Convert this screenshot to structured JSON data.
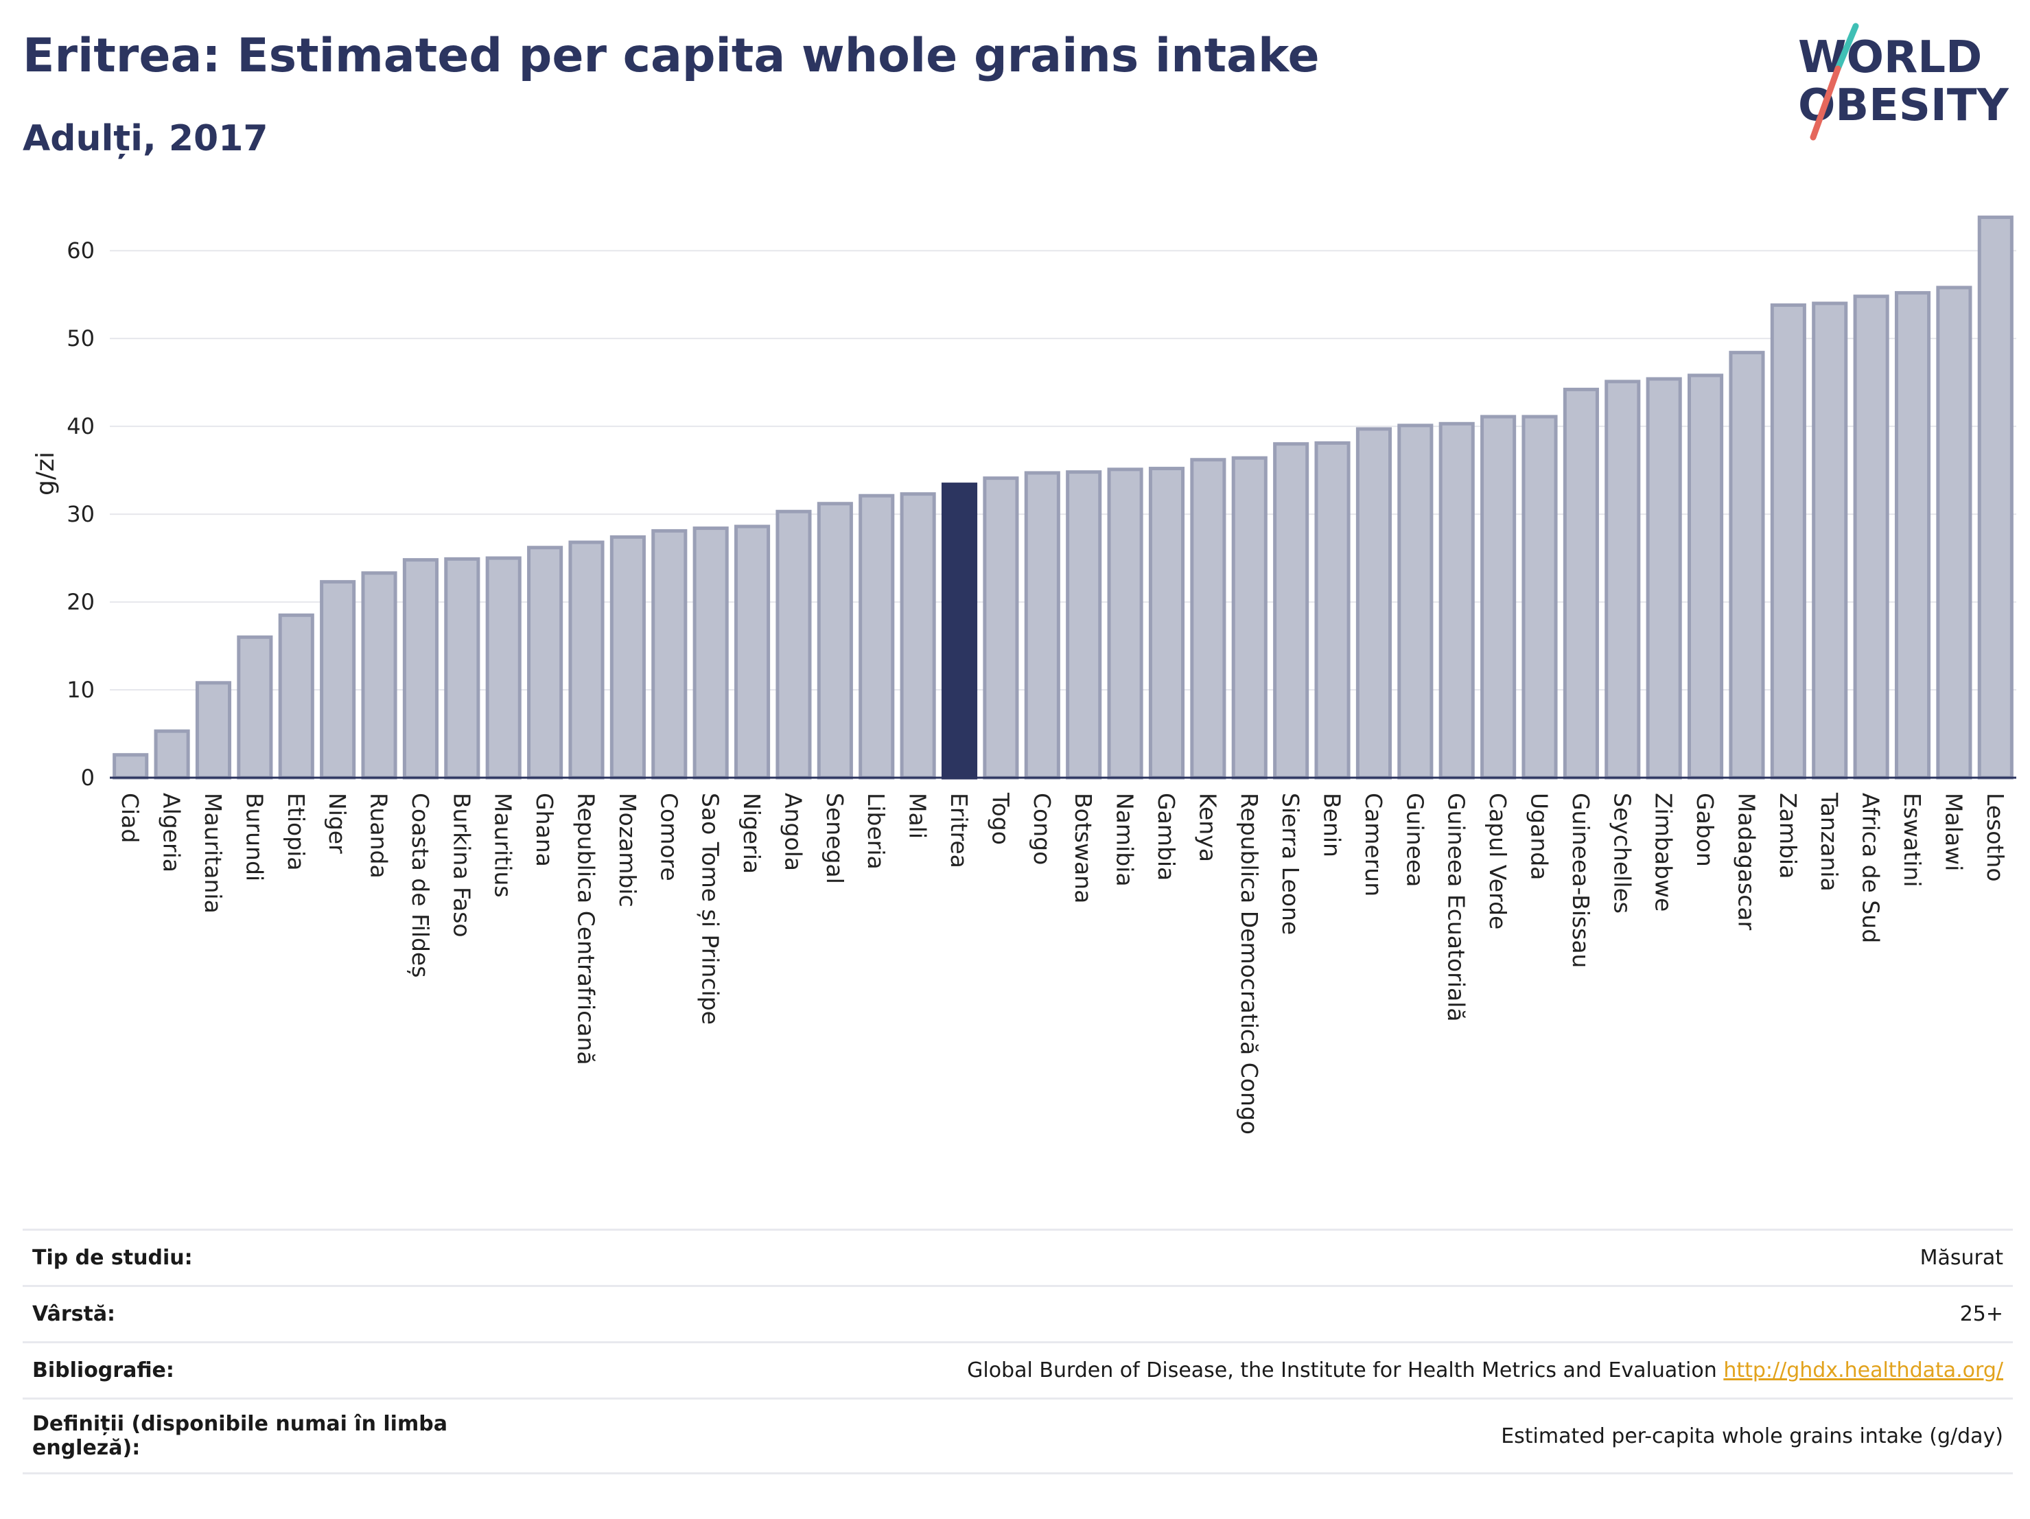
{
  "header": {
    "title": "Eritrea: Estimated per capita whole grains intake",
    "subtitle": "Adulți, 2017"
  },
  "logo": {
    "line1": "WORLD",
    "line2": "OBESITY"
  },
  "colors": {
    "highlight": "#2c3560",
    "bar": "#bcc0cf",
    "bar_border": "#9a9fb6",
    "accent_teal": "#3fbfb5",
    "accent_red": "#e5675c"
  },
  "chart_data": {
    "type": "bar",
    "ylabel": "g/zi",
    "xlabel": "",
    "ylim": [
      0,
      64
    ],
    "yticks": [
      0,
      10,
      20,
      30,
      40,
      50,
      60
    ],
    "grid": true,
    "highlight": "Eritrea",
    "categories": [
      "Ciad",
      "Algeria",
      "Mauritania",
      "Burundi",
      "Etiopia",
      "Niger",
      "Ruanda",
      "Coasta de Fildeș",
      "Burkina Faso",
      "Mauritius",
      "Ghana",
      "Republica Centrafricană",
      "Mozambic",
      "Comore",
      "Sao Tome și Principe",
      "Nigeria",
      "Angola",
      "Senegal",
      "Liberia",
      "Mali",
      "Eritrea",
      "Togo",
      "Congo",
      "Botswana",
      "Namibia",
      "Gambia",
      "Kenya",
      "Republica Democratică Congo",
      "Sierra Leone",
      "Benin",
      "Camerun",
      "Guineea",
      "Guineea Ecuatorială",
      "Capul Verde",
      "Uganda",
      "Guineea-Bissau",
      "Seychelles",
      "Zimbabwe",
      "Gabon",
      "Madagascar",
      "Zambia",
      "Tanzania",
      "Africa de Sud",
      "Eswatini",
      "Malawi",
      "Lesotho"
    ],
    "values": [
      2.6,
      5.3,
      10.8,
      16.0,
      18.5,
      22.3,
      23.3,
      24.8,
      24.9,
      25.0,
      26.2,
      26.8,
      27.4,
      28.1,
      28.4,
      28.6,
      30.3,
      31.2,
      32.1,
      32.3,
      33.4,
      34.1,
      34.7,
      34.8,
      35.1,
      35.2,
      36.2,
      36.4,
      38.0,
      38.1,
      39.7,
      40.1,
      40.3,
      41.1,
      41.1,
      44.2,
      45.1,
      45.4,
      45.8,
      48.4,
      53.8,
      54.0,
      54.8,
      55.2,
      55.8,
      63.8
    ]
  },
  "info": {
    "rows": [
      {
        "key": "Tip de studiu:",
        "value": "Măsurat"
      },
      {
        "key": "Vârstă:",
        "value": "25+"
      },
      {
        "key": "Bibliografie:",
        "value": "Global Burden of Disease, the Institute for Health Metrics and Evaluation",
        "link": "http://ghdx.healthdata.org/"
      },
      {
        "key": "Definiții (disponibile numai în limba engleză):",
        "value": "Estimated per-capita whole grains intake (g/day)"
      }
    ]
  }
}
